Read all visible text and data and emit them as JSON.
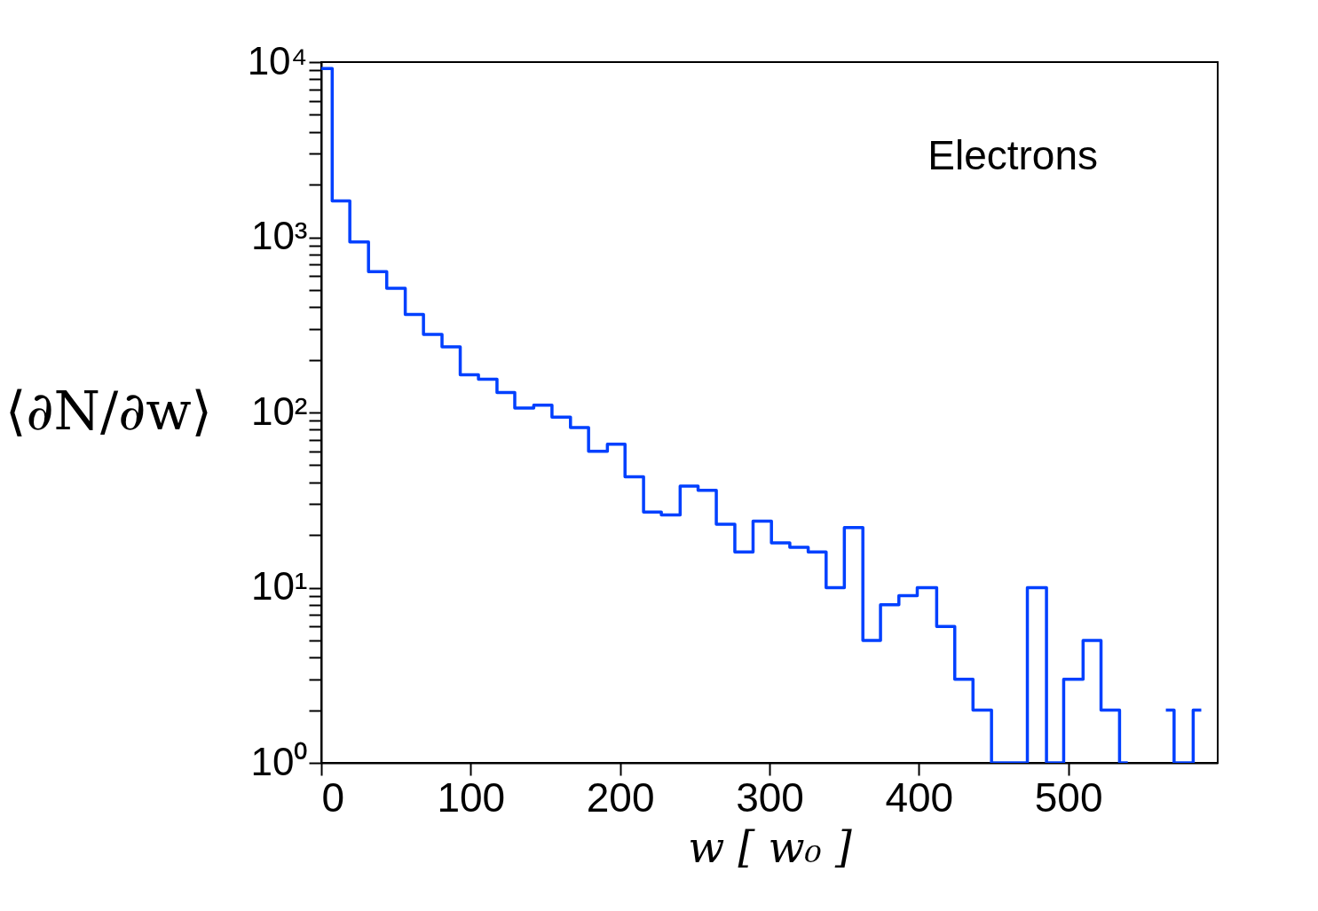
{
  "chart_data": {
    "type": "step",
    "xlabel": "w [ w₀ ]",
    "ylabel": "⟨∂N/∂w⟩",
    "annotations": [
      "Electrons"
    ],
    "log": "y",
    "grid": false,
    "marker": "none",
    "line_style": "solid",
    "xlim": [
      0,
      600
    ],
    "xticks": [
      0,
      100,
      200,
      300,
      400,
      500
    ],
    "ylim": [
      1,
      10000
    ],
    "yticks": [
      {
        "value": 1,
        "label": "10⁰"
      },
      {
        "value": 2,
        "label": null
      },
      {
        "value": 3,
        "label": null
      },
      {
        "value": 4,
        "label": null
      },
      {
        "value": 5,
        "label": null
      },
      {
        "value": 6,
        "label": null
      },
      {
        "value": 7,
        "label": null
      },
      {
        "value": 8,
        "label": null
      },
      {
        "value": 9,
        "label": null
      },
      {
        "value": 10,
        "label": "10¹"
      },
      {
        "value": 20,
        "label": null
      },
      {
        "value": 30,
        "label": null
      },
      {
        "value": 40,
        "label": null
      },
      {
        "value": 50,
        "label": null
      },
      {
        "value": 60,
        "label": null
      },
      {
        "value": 70,
        "label": null
      },
      {
        "value": 80,
        "label": null
      },
      {
        "value": 90,
        "label": null
      },
      {
        "value": 100,
        "label": "10²"
      },
      {
        "value": 200,
        "label": null
      },
      {
        "value": 300,
        "label": null
      },
      {
        "value": 400,
        "label": null
      },
      {
        "value": 500,
        "label": null
      },
      {
        "value": 600,
        "label": null
      },
      {
        "value": 700,
        "label": null
      },
      {
        "value": 800,
        "label": null
      },
      {
        "value": 900,
        "label": null
      },
      {
        "value": 1000,
        "label": "10³"
      },
      {
        "value": 2000,
        "label": null
      },
      {
        "value": 3000,
        "label": null
      },
      {
        "value": 4000,
        "label": null
      },
      {
        "value": 5000,
        "label": null
      },
      {
        "value": 6000,
        "label": null
      },
      {
        "value": 7000,
        "label": null
      },
      {
        "value": 8000,
        "label": null
      },
      {
        "value": 9000,
        "label": null
      },
      {
        "value": 10000,
        "label": "10⁴"
      }
    ],
    "series": [
      {
        "color": "#0040ff",
        "x": [
          0,
          7.3,
          19.1,
          31.6,
          43.8,
          56.2,
          68.4,
          80.8,
          93.0,
          105.2,
          117.6,
          129.5,
          142.2,
          154.4,
          166.8,
          178.9,
          191.5,
          203.3,
          215.7,
          227.6,
          240.2,
          252.2,
          264.4,
          276.8,
          289.0,
          301.3,
          313.6,
          325.9,
          337.9,
          350.1,
          362.5,
          374.3,
          386.6,
          398.9,
          411.9,
          424.0,
          436.2,
          448.6,
          472.6,
          485.4,
          496.9,
          509.9,
          521.9,
          534.3,
          539.8,
          552.0,
          565.3,
          570.8,
          583.6,
          589.0
        ],
        "values": [
          9200,
          1615,
          940,
          637,
          512,
          363,
          279,
          237,
          164,
          155,
          130,
          106,
          110,
          94,
          82,
          60,
          66,
          43,
          27,
          26,
          38,
          36,
          23,
          16,
          24,
          18,
          17,
          16,
          10,
          22,
          5,
          8,
          9,
          10,
          6,
          3,
          2,
          1,
          10,
          1,
          3,
          5,
          2,
          1,
          1,
          null,
          2,
          1,
          2,
          2
        ]
      }
    ]
  }
}
